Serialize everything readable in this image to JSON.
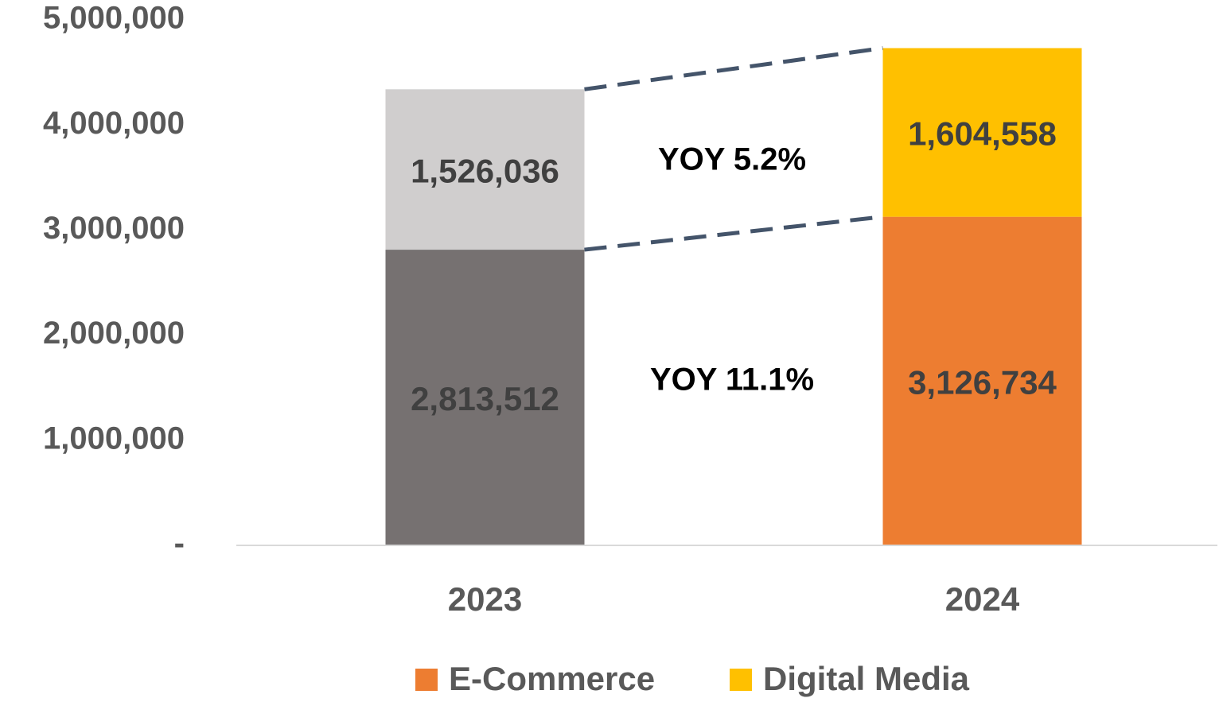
{
  "chart_data": {
    "type": "stacked_bar",
    "categories": [
      "2023",
      "2024"
    ],
    "series": [
      {
        "name": "E-Commerce",
        "color": "#ed7d31",
        "colors": [
          "#767171",
          "#ed7d31"
        ],
        "values": [
          2813512,
          3126734
        ],
        "value_labels": [
          "2,813,512",
          "3,126,734"
        ]
      },
      {
        "name": "Digital Media",
        "color": "#ffc000",
        "colors": [
          "#d0cece",
          "#ffc000"
        ],
        "values": [
          1526036,
          1604558
        ],
        "value_labels": [
          "1,526,036",
          "1,604,558"
        ]
      }
    ],
    "annotations": [
      "YOY 5.2%",
      "YOY 11.1%"
    ],
    "ylim": [
      0,
      5000000
    ],
    "yticks": [
      {
        "value": 0,
        "label": "-"
      },
      {
        "value": 1000000,
        "label": "1,000,000"
      },
      {
        "value": 2000000,
        "label": "2,000,000"
      },
      {
        "value": 3000000,
        "label": "3,000,000"
      },
      {
        "value": 4000000,
        "label": "4,000,000"
      },
      {
        "value": 5000000,
        "label": "5,000,000"
      }
    ],
    "grid": false,
    "legend": "bottom"
  }
}
